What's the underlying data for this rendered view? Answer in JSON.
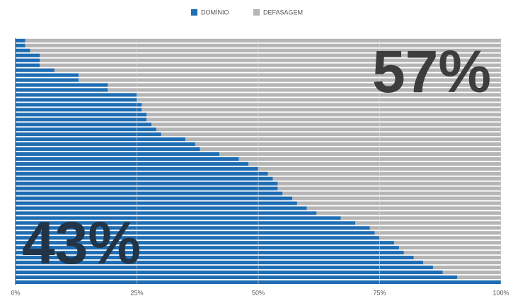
{
  "chart_data": {
    "type": "stacked_barh",
    "categories": [
      null,
      null,
      null,
      null,
      null,
      null,
      null,
      null,
      null,
      null,
      null,
      null,
      null,
      null,
      null,
      null,
      null,
      null,
      null,
      null,
      null,
      null,
      null,
      null,
      null,
      null,
      null,
      null,
      null,
      null,
      null,
      null,
      null,
      null,
      null,
      null,
      null,
      null,
      null,
      null,
      null,
      null,
      null,
      null,
      null,
      null,
      null,
      null,
      null,
      null
    ],
    "series": [
      {
        "name": "DOMÍNIO",
        "color": "#1f6db3",
        "values": [
          2,
          2,
          3,
          5,
          5,
          5,
          8,
          13,
          13,
          19,
          19,
          25,
          25,
          26,
          26,
          27,
          27,
          28,
          29,
          30,
          35,
          37,
          38,
          42,
          46,
          48,
          50,
          52,
          53,
          54,
          54,
          55,
          57,
          58,
          60,
          62,
          67,
          70,
          73,
          74,
          75,
          78,
          79,
          80,
          82,
          84,
          86,
          88,
          91,
          100
        ]
      },
      {
        "name": "DEFASAGEM",
        "color": "#b5b5b5",
        "values": [
          98,
          98,
          97,
          95,
          95,
          95,
          92,
          87,
          87,
          81,
          81,
          75,
          75,
          74,
          74,
          73,
          73,
          72,
          71,
          70,
          65,
          63,
          62,
          58,
          54,
          52,
          50,
          48,
          47,
          46,
          46,
          45,
          43,
          42,
          40,
          38,
          33,
          30,
          27,
          26,
          25,
          22,
          21,
          20,
          18,
          16,
          14,
          12,
          9,
          0
        ]
      }
    ],
    "xlim": [
      0,
      100
    ],
    "xticks": [
      {
        "value": 0,
        "label": "0%"
      },
      {
        "value": 25,
        "label": "25%"
      },
      {
        "value": 50,
        "label": "50%"
      },
      {
        "value": 75,
        "label": "75%"
      },
      {
        "value": 100,
        "label": "100%"
      }
    ],
    "grid": true,
    "legend": "top",
    "annotations": [
      {
        "text": "57%",
        "color": "#3d3d3d"
      },
      {
        "text": "43%",
        "color": "#233447"
      }
    ]
  }
}
